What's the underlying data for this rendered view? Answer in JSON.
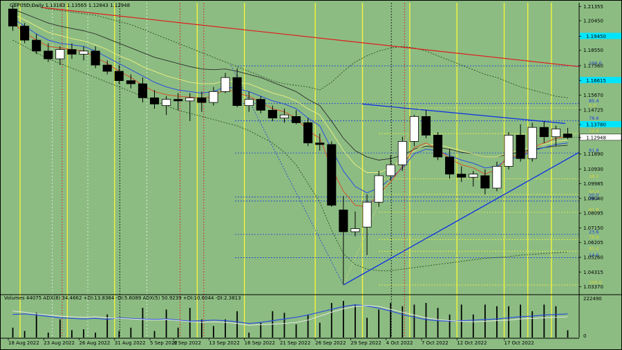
{
  "header": {
    "title": "GBPUSD,Daily  1.13183 1.13565 1.12843 1.12948"
  },
  "indicator_header": "Volumes 44075  ADX(8) 34.4662 +DI:13.8384 -DI:5.6089  ADX(5) 50.9239 +DI:10.6044 -DI:2.3813",
  "colors": {
    "background": "#8cbc82",
    "bull_candle": "#ffffff",
    "bear_candle": "#000000",
    "trend_blue": "#0a2ee6",
    "trend_red": "#e01b1b",
    "highlight_cyan": "#00e5ff",
    "yellow_line": "#f5f53a"
  },
  "chart_data": {
    "type": "candlestick",
    "symbol": "GBPUSD",
    "timeframe": "Daily",
    "last_price": "1.12948",
    "ylim": [
      1.0295,
      1.216
    ],
    "price_ticks": [
      "1.21355",
      "1.20450",
      "1.19450",
      "1.18550",
      "1.17560",
      "1.16615",
      "1.15670",
      "1.14725",
      "1.13780",
      "1.12948",
      "1.11890",
      "1.10930",
      "1.09985",
      "1.09040",
      "1.08095",
      "1.07150",
      "1.06205",
      "1.05260",
      "1.04315",
      "1.03370"
    ],
    "highlighted_ticks": [
      "1.19450",
      "1.16615",
      "1.13780"
    ],
    "x_labels": [
      "18 Aug 2022",
      "23 Aug 2022",
      "26 Aug 2022",
      "31 Aug 2022",
      "5 Sep 2022",
      "8 Sep 2022",
      "13 Sep 2022",
      "16 Sep 2022",
      "21 Sep 2022",
      "26 Sep 2022",
      "29 Sep 2022",
      "4 Oct 2022",
      "7 Oct 2022",
      "12 Oct 2022",
      "17 Oct 2022"
    ],
    "candles": [
      {
        "o": 1.212,
        "h": 1.214,
        "l": 1.198,
        "c": 1.201
      },
      {
        "o": 1.201,
        "h": 1.203,
        "l": 1.19,
        "c": 1.192
      },
      {
        "o": 1.192,
        "h": 1.196,
        "l": 1.183,
        "c": 1.185
      },
      {
        "o": 1.185,
        "h": 1.19,
        "l": 1.178,
        "c": 1.18
      },
      {
        "o": 1.18,
        "h": 1.188,
        "l": 1.176,
        "c": 1.186
      },
      {
        "o": 1.186,
        "h": 1.19,
        "l": 1.18,
        "c": 1.183
      },
      {
        "o": 1.183,
        "h": 1.188,
        "l": 1.179,
        "c": 1.185
      },
      {
        "o": 1.185,
        "h": 1.188,
        "l": 1.174,
        "c": 1.176
      },
      {
        "o": 1.176,
        "h": 1.179,
        "l": 1.17,
        "c": 1.172
      },
      {
        "o": 1.172,
        "h": 1.176,
        "l": 1.164,
        "c": 1.166
      },
      {
        "o": 1.166,
        "h": 1.17,
        "l": 1.161,
        "c": 1.164
      },
      {
        "o": 1.164,
        "h": 1.168,
        "l": 1.152,
        "c": 1.155
      },
      {
        "o": 1.155,
        "h": 1.16,
        "l": 1.148,
        "c": 1.151
      },
      {
        "o": 1.15,
        "h": 1.156,
        "l": 1.144,
        "c": 1.154
      },
      {
        "o": 1.154,
        "h": 1.158,
        "l": 1.147,
        "c": 1.153
      },
      {
        "o": 1.153,
        "h": 1.158,
        "l": 1.14,
        "c": 1.155
      },
      {
        "o": 1.155,
        "h": 1.159,
        "l": 1.146,
        "c": 1.152
      },
      {
        "o": 1.152,
        "h": 1.162,
        "l": 1.15,
        "c": 1.159
      },
      {
        "o": 1.159,
        "h": 1.171,
        "l": 1.158,
        "c": 1.168
      },
      {
        "o": 1.168,
        "h": 1.174,
        "l": 1.149,
        "c": 1.15
      },
      {
        "o": 1.15,
        "h": 1.159,
        "l": 1.146,
        "c": 1.154
      },
      {
        "o": 1.154,
        "h": 1.156,
        "l": 1.145,
        "c": 1.147
      },
      {
        "o": 1.147,
        "h": 1.15,
        "l": 1.14,
        "c": 1.142
      },
      {
        "o": 1.142,
        "h": 1.148,
        "l": 1.139,
        "c": 1.144
      },
      {
        "o": 1.143,
        "h": 1.147,
        "l": 1.138,
        "c": 1.139
      },
      {
        "o": 1.139,
        "h": 1.142,
        "l": 1.124,
        "c": 1.126
      },
      {
        "o": 1.126,
        "h": 1.132,
        "l": 1.121,
        "c": 1.125
      },
      {
        "o": 1.125,
        "h": 1.127,
        "l": 1.085,
        "c": 1.086
      },
      {
        "o": 1.083,
        "h": 1.092,
        "l": 1.035,
        "c": 1.069
      },
      {
        "o": 1.069,
        "h": 1.082,
        "l": 1.066,
        "c": 1.071
      },
      {
        "o": 1.072,
        "h": 1.093,
        "l": 1.054,
        "c": 1.088
      },
      {
        "o": 1.088,
        "h": 1.108,
        "l": 1.085,
        "c": 1.105
      },
      {
        "o": 1.105,
        "h": 1.118,
        "l": 1.102,
        "c": 1.112
      },
      {
        "o": 1.112,
        "h": 1.13,
        "l": 1.108,
        "c": 1.127
      },
      {
        "o": 1.127,
        "h": 1.144,
        "l": 1.124,
        "c": 1.143
      },
      {
        "o": 1.143,
        "h": 1.147,
        "l": 1.129,
        "c": 1.131
      },
      {
        "o": 1.131,
        "h": 1.133,
        "l": 1.115,
        "c": 1.117
      },
      {
        "o": 1.117,
        "h": 1.122,
        "l": 1.103,
        "c": 1.106
      },
      {
        "o": 1.106,
        "h": 1.111,
        "l": 1.101,
        "c": 1.104
      },
      {
        "o": 1.104,
        "h": 1.108,
        "l": 1.098,
        "c": 1.106
      },
      {
        "o": 1.105,
        "h": 1.109,
        "l": 1.093,
        "c": 1.097
      },
      {
        "o": 1.097,
        "h": 1.114,
        "l": 1.095,
        "c": 1.111
      },
      {
        "o": 1.111,
        "h": 1.133,
        "l": 1.109,
        "c": 1.131
      },
      {
        "o": 1.131,
        "h": 1.138,
        "l": 1.114,
        "c": 1.116
      },
      {
        "o": 1.116,
        "h": 1.139,
        "l": 1.114,
        "c": 1.136
      },
      {
        "o": 1.136,
        "h": 1.14,
        "l": 1.126,
        "c": 1.13
      },
      {
        "o": 1.13,
        "h": 1.137,
        "l": 1.124,
        "c": 1.135
      },
      {
        "o": 1.1318,
        "h": 1.1357,
        "l": 1.1284,
        "c": 1.1295
      }
    ],
    "ma_fast": [
      1.203,
      1.197,
      1.192,
      1.188,
      1.187,
      1.186,
      1.185,
      1.181,
      1.177,
      1.172,
      1.168,
      1.163,
      1.159,
      1.157,
      1.156,
      1.1555,
      1.1545,
      1.156,
      1.161,
      1.158,
      1.156,
      1.152,
      1.148,
      1.146,
      1.142,
      1.134,
      1.129,
      1.11,
      1.095,
      1.086,
      1.085,
      1.093,
      1.101,
      1.111,
      1.123,
      1.126,
      1.122,
      1.116,
      1.112,
      1.11,
      1.106,
      1.109,
      1.118,
      1.117,
      1.123,
      1.126,
      1.129,
      1.13
    ],
    "ma_mid": [
      1.206,
      1.201,
      1.196,
      1.192,
      1.19,
      1.189,
      1.188,
      1.185,
      1.181,
      1.177,
      1.173,
      1.169,
      1.165,
      1.162,
      1.16,
      1.159,
      1.158,
      1.159,
      1.162,
      1.161,
      1.159,
      1.156,
      1.153,
      1.151,
      1.148,
      1.142,
      1.137,
      1.122,
      1.108,
      1.098,
      1.094,
      1.097,
      1.103,
      1.11,
      1.119,
      1.122,
      1.121,
      1.118,
      1.115,
      1.113,
      1.11,
      1.111,
      1.116,
      1.117,
      1.121,
      1.123,
      1.125,
      1.126
    ],
    "ma_slow": [
      1.209,
      1.205,
      1.201,
      1.197,
      1.195,
      1.193,
      1.1915,
      1.189,
      1.186,
      1.182,
      1.179,
      1.175,
      1.172,
      1.169,
      1.167,
      1.165,
      1.164,
      1.164,
      1.166,
      1.165,
      1.164,
      1.161,
      1.158,
      1.156,
      1.153,
      1.148,
      1.144,
      1.133,
      1.121,
      1.112,
      1.107,
      1.107,
      1.11,
      1.115,
      1.121,
      1.125,
      1.125,
      1.123,
      1.121,
      1.119,
      1.117,
      1.117,
      1.12,
      1.121,
      1.124,
      1.125,
      1.127,
      1.128
    ],
    "ma_dark": [
      1.212,
      1.209,
      1.206,
      1.203,
      1.201,
      1.1995,
      1.198,
      1.196,
      1.193,
      1.19,
      1.187,
      1.184,
      1.181,
      1.179,
      1.177,
      1.175,
      1.1735,
      1.173,
      1.1735,
      1.172,
      1.17,
      1.168,
      1.165,
      1.162,
      1.159,
      1.154,
      1.15,
      1.14,
      1.129,
      1.121,
      1.117,
      1.115,
      1.116,
      1.118,
      1.122,
      1.124,
      1.123,
      1.122,
      1.12,
      1.119,
      1.117,
      1.117,
      1.119,
      1.12,
      1.122,
      1.123,
      1.124,
      1.1245
    ],
    "bb_upper": [
      1.216,
      1.215,
      1.214,
      1.212,
      1.211,
      1.21,
      1.209,
      1.208,
      1.206,
      1.204,
      1.202,
      1.199,
      1.196,
      1.193,
      1.19,
      1.187,
      1.184,
      1.181,
      1.178,
      1.175,
      1.172,
      1.169,
      1.166,
      1.164,
      1.163,
      1.162,
      1.16,
      1.165,
      1.172,
      1.178,
      1.182,
      1.185,
      1.187,
      1.188,
      1.187,
      1.185,
      1.182,
      1.179,
      1.176,
      1.173,
      1.17,
      1.168,
      1.165,
      1.162,
      1.16,
      1.158,
      1.156,
      1.155
    ],
    "bb_lower": [
      1.192,
      1.188,
      1.184,
      1.18,
      1.177,
      1.174,
      1.171,
      1.168,
      1.165,
      1.162,
      1.159,
      1.156,
      1.153,
      1.15,
      1.147,
      1.145,
      1.143,
      1.141,
      1.139,
      1.137,
      1.134,
      1.13,
      1.126,
      1.12,
      1.112,
      1.1,
      1.088,
      1.07,
      1.055,
      1.048,
      1.045,
      1.044,
      1.044,
      1.045,
      1.046,
      1.047,
      1.048,
      1.049,
      1.05,
      1.051,
      1.052,
      1.0525,
      1.053,
      1.054,
      1.0545,
      1.055,
      1.0555,
      1.056
    ],
    "fib_levels": [
      {
        "label": "100.0",
        "price": 1.1755
      },
      {
        "label": "85.4",
        "price": 1.1513
      },
      {
        "label": "78.6",
        "price": 1.1402
      },
      {
        "label": "61.8",
        "price": 1.1196
      },
      {
        "label": "50.0",
        "price": 1.0913
      },
      {
        "label": "38.2",
        "price": 1.0887
      },
      {
        "label": "23.6",
        "price": 1.0673
      },
      {
        "label": "14.6",
        "price": 1.0524
      }
    ],
    "fib_levels_yellow": [
      {
        "label": "0.0",
        "price": 1.1485
      },
      {
        "label": "14.6",
        "price": 1.132
      },
      {
        "label": "38.2",
        "price": 1.103
      },
      {
        "label": "50.0",
        "price": 1.093
      },
      {
        "label": "61.8",
        "price": 1.0815
      },
      {
        "label": "78.6",
        "price": 1.064
      },
      {
        "label": "85.4",
        "price": 1.0565
      },
      {
        "label": "100.0",
        "price": 1.0348
      }
    ],
    "volume_ylim": [
      0,
      222490
    ],
    "volume_ticks": [
      "222490",
      "0"
    ],
    "volumes": [
      60000,
      40000,
      150000,
      30000,
      110000,
      45000,
      50000,
      30000,
      140000,
      40000,
      60000,
      180000,
      40000,
      170000,
      60000,
      180000,
      110000,
      70000,
      110000,
      160000,
      30000,
      90000,
      160000,
      150000,
      80000,
      140000,
      90000,
      210000,
      222490,
      200000,
      120000,
      170000,
      210000,
      190000,
      200000,
      210000,
      180000,
      140000,
      200000,
      140000,
      200000,
      190000,
      190000,
      200000,
      160000,
      200000,
      190000,
      44075
    ],
    "adx_line1": [
      0.62,
      0.64,
      0.6,
      0.55,
      0.5,
      0.48,
      0.46,
      0.48,
      0.45,
      0.5,
      0.48,
      0.46,
      0.44,
      0.46,
      0.42,
      0.38,
      0.4,
      0.42,
      0.4,
      0.36,
      0.3,
      0.34,
      0.4,
      0.46,
      0.52,
      0.6,
      0.7,
      0.8,
      0.9,
      0.96,
      0.92,
      0.84,
      0.74,
      0.62,
      0.52,
      0.44,
      0.4,
      0.38,
      0.4,
      0.42,
      0.44,
      0.46,
      0.5,
      0.54,
      0.56,
      0.6,
      0.62,
      0.64
    ],
    "adx_line2": [
      0.74,
      0.7,
      0.64,
      0.6,
      0.56,
      0.54,
      0.52,
      0.54,
      0.5,
      0.48,
      0.46,
      0.44,
      0.42,
      0.44,
      0.4,
      0.36,
      0.34,
      0.36,
      0.34,
      0.3,
      0.24,
      0.26,
      0.28,
      0.3,
      0.34,
      0.42,
      0.56,
      0.7,
      0.82,
      0.9,
      0.94,
      0.9,
      0.8,
      0.7,
      0.6,
      0.5,
      0.44,
      0.4,
      0.38,
      0.36,
      0.38,
      0.4,
      0.42,
      0.46,
      0.48,
      0.5,
      0.52,
      0.54
    ]
  }
}
